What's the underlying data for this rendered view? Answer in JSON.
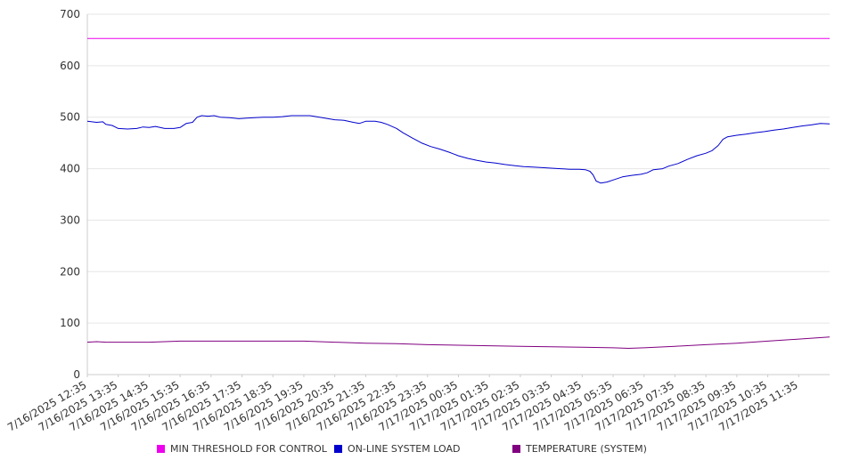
{
  "chart_data": {
    "type": "line",
    "ylim": [
      0,
      700
    ],
    "y_ticks": [
      0,
      100,
      200,
      300,
      400,
      500,
      600,
      700
    ],
    "x_tick_labels": [
      "7/16/2025 12:35",
      "7/16/2025 13:35",
      "7/16/2025 14:35",
      "7/16/2025 15:35",
      "7/16/2025 16:35",
      "7/16/2025 17:35",
      "7/16/2025 18:35",
      "7/16/2025 19:35",
      "7/16/2025 20:35",
      "7/16/2025 21:35",
      "7/16/2025 22:35",
      "7/16/2025 23:35",
      "7/17/2025 00:35",
      "7/17/2025 01:35",
      "7/17/2025 02:35",
      "7/17/2025 03:35",
      "7/17/2025 04:35",
      "7/17/2025 05:35",
      "7/17/2025 06:35",
      "7/17/2025 07:35",
      "7/17/2025 08:35",
      "7/17/2025 09:35",
      "7/17/2025 10:35",
      "7/17/2025 11:35"
    ],
    "x_range_hours": [
      0,
      24
    ],
    "grid": true,
    "legend_position": "bottom",
    "series": [
      {
        "name": "MIN THRESHOLD FOR CONTROL",
        "color": "#ee00ee",
        "points": [
          [
            0,
            653
          ],
          [
            24,
            653
          ]
        ]
      },
      {
        "name": "ON-LINE SYSTEM LOAD",
        "color": "#0000cc",
        "points": [
          [
            0,
            492
          ],
          [
            0.3,
            490
          ],
          [
            0.5,
            491
          ],
          [
            0.6,
            486
          ],
          [
            0.8,
            484
          ],
          [
            1.0,
            478
          ],
          [
            1.3,
            477
          ],
          [
            1.6,
            478
          ],
          [
            1.8,
            481
          ],
          [
            2.0,
            480
          ],
          [
            2.2,
            482
          ],
          [
            2.5,
            478
          ],
          [
            2.8,
            478
          ],
          [
            3.0,
            480
          ],
          [
            3.2,
            488
          ],
          [
            3.4,
            490
          ],
          [
            3.55,
            500
          ],
          [
            3.7,
            503
          ],
          [
            3.9,
            502
          ],
          [
            4.1,
            503
          ],
          [
            4.3,
            500
          ],
          [
            4.6,
            499
          ],
          [
            4.9,
            497
          ],
          [
            5.1,
            498
          ],
          [
            5.4,
            499
          ],
          [
            5.7,
            500
          ],
          [
            6.0,
            500
          ],
          [
            6.3,
            501
          ],
          [
            6.6,
            503
          ],
          [
            6.9,
            503
          ],
          [
            7.2,
            503
          ],
          [
            7.4,
            501
          ],
          [
            7.7,
            498
          ],
          [
            8.0,
            495
          ],
          [
            8.3,
            494
          ],
          [
            8.6,
            490
          ],
          [
            8.8,
            488
          ],
          [
            9.0,
            492
          ],
          [
            9.3,
            492
          ],
          [
            9.5,
            490
          ],
          [
            9.7,
            486
          ],
          [
            10.0,
            478
          ],
          [
            10.2,
            470
          ],
          [
            10.5,
            460
          ],
          [
            10.8,
            450
          ],
          [
            11.1,
            443
          ],
          [
            11.4,
            438
          ],
          [
            11.7,
            432
          ],
          [
            12.0,
            425
          ],
          [
            12.3,
            420
          ],
          [
            12.6,
            416
          ],
          [
            12.9,
            413
          ],
          [
            13.2,
            411
          ],
          [
            13.5,
            408
          ],
          [
            13.8,
            406
          ],
          [
            14.1,
            404
          ],
          [
            14.4,
            403
          ],
          [
            14.7,
            402
          ],
          [
            15.0,
            401
          ],
          [
            15.3,
            400
          ],
          [
            15.6,
            399
          ],
          [
            15.9,
            399
          ],
          [
            16.1,
            398
          ],
          [
            16.25,
            395
          ],
          [
            16.35,
            388
          ],
          [
            16.45,
            376
          ],
          [
            16.6,
            372
          ],
          [
            16.8,
            374
          ],
          [
            17.0,
            378
          ],
          [
            17.3,
            384
          ],
          [
            17.6,
            387
          ],
          [
            17.9,
            389
          ],
          [
            18.1,
            392
          ],
          [
            18.3,
            398
          ],
          [
            18.6,
            400
          ],
          [
            18.8,
            405
          ],
          [
            19.1,
            410
          ],
          [
            19.4,
            418
          ],
          [
            19.7,
            425
          ],
          [
            20.0,
            430
          ],
          [
            20.2,
            435
          ],
          [
            20.4,
            445
          ],
          [
            20.55,
            457
          ],
          [
            20.7,
            462
          ],
          [
            21.0,
            465
          ],
          [
            21.3,
            467
          ],
          [
            21.6,
            470
          ],
          [
            21.9,
            472
          ],
          [
            22.2,
            475
          ],
          [
            22.5,
            477
          ],
          [
            22.8,
            480
          ],
          [
            23.1,
            483
          ],
          [
            23.4,
            485
          ],
          [
            23.7,
            488
          ],
          [
            24.0,
            487
          ]
        ]
      },
      {
        "name": "TEMPERATURE (SYSTEM)",
        "color": "#800080",
        "points": [
          [
            0,
            63
          ],
          [
            0.3,
            64
          ],
          [
            0.6,
            63
          ],
          [
            1,
            63
          ],
          [
            2,
            63
          ],
          [
            2.5,
            64
          ],
          [
            3,
            65
          ],
          [
            4,
            65
          ],
          [
            5,
            65
          ],
          [
            5.5,
            65
          ],
          [
            6,
            65
          ],
          [
            7,
            65
          ],
          [
            7.5,
            64
          ],
          [
            8,
            63
          ],
          [
            9,
            61
          ],
          [
            10,
            60
          ],
          [
            11,
            58
          ],
          [
            12,
            57
          ],
          [
            13,
            56
          ],
          [
            14,
            55
          ],
          [
            15,
            54
          ],
          [
            16,
            53
          ],
          [
            17,
            52
          ],
          [
            17.5,
            51
          ],
          [
            18,
            52
          ],
          [
            19,
            55
          ],
          [
            20,
            58
          ],
          [
            21,
            61
          ],
          [
            22,
            65
          ],
          [
            23,
            69
          ],
          [
            24,
            73
          ]
        ]
      }
    ]
  }
}
